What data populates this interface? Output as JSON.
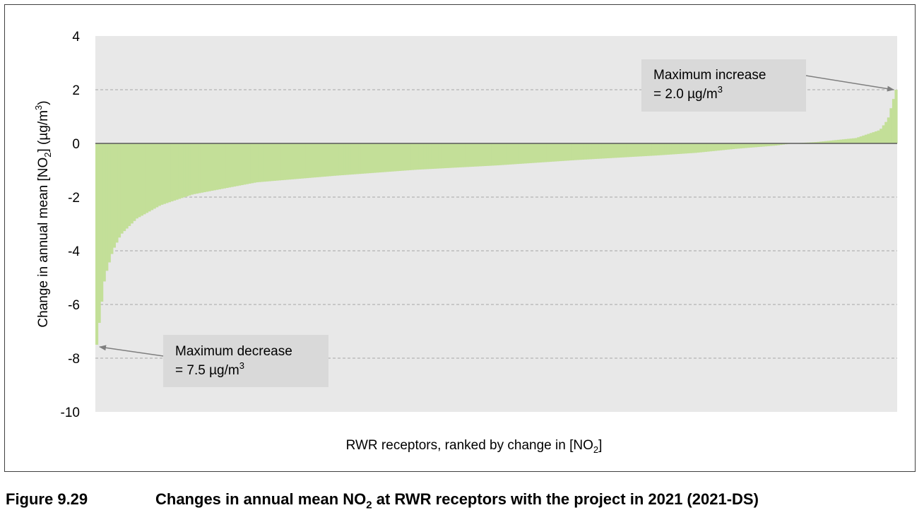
{
  "chart_data": {
    "type": "area",
    "title": "",
    "xlabel_parts": [
      "RWR receptors, ranked by change in [NO",
      "2",
      "]"
    ],
    "ylabel_parts": [
      "Change in annual mean [NO",
      "2",
      "] (µg/m",
      "3",
      ")"
    ],
    "ylim": [
      -10,
      4
    ],
    "yticks": [
      4,
      2,
      0,
      -2,
      -4,
      -6,
      -8,
      -10
    ],
    "grid": true,
    "legend": "none",
    "series_color": "#c3df98",
    "plot_background": "#e8e8e8",
    "n_receptors": 320,
    "profile": {
      "rank_fraction": [
        0,
        0.005,
        0.01,
        0.02,
        0.03,
        0.05,
        0.08,
        0.12,
        0.2,
        0.3,
        0.4,
        0.5,
        0.6,
        0.7,
        0.75,
        0.8,
        0.85,
        0.87,
        0.9,
        0.95,
        0.98,
        0.99,
        1.0
      ],
      "change": [
        -7.5,
        -6.2,
        -5.0,
        -4.0,
        -3.4,
        -2.8,
        -2.3,
        -1.9,
        -1.45,
        -1.2,
        -0.98,
        -0.82,
        -0.62,
        -0.45,
        -0.35,
        -0.2,
        -0.08,
        0,
        0.05,
        0.2,
        0.5,
        0.9,
        2.0
      ]
    },
    "annotations": [
      {
        "lines": [
          "Maximum increase",
          "= 2.0 µg/m"
        ],
        "sup": "3",
        "target_rank_fraction": 1.0,
        "target_value": 2.0
      },
      {
        "lines": [
          "Maximum decrease",
          "= 7.5 µg/m"
        ],
        "sup": "3",
        "target_rank_fraction": 0.0,
        "target_value": -7.5
      }
    ]
  },
  "caption": {
    "label": "Figure 9.29",
    "title_parts": [
      "Changes in annual mean NO",
      "2",
      " at RWR receptors with the project in 2021 (2021-DS)"
    ]
  },
  "colors": {
    "grid": "#a6a6a6",
    "zero_line": "#595959",
    "annotation_box": "#d9d9d9",
    "arrow": "#7f7f7f"
  }
}
